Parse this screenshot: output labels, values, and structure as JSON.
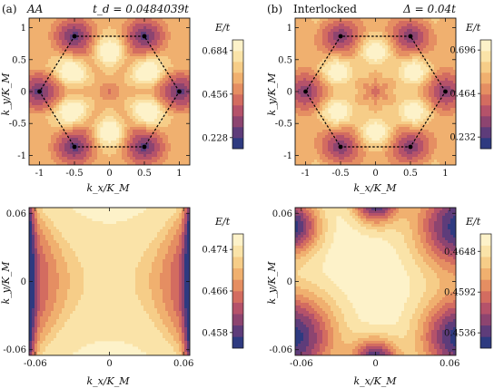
{
  "chart_data": [
    {
      "type": "heatmap",
      "panel_label": "(a)",
      "title_left": "AA",
      "title_right": "t_d = 0.0484039t",
      "xlabel": "k_x/K_M",
      "ylabel": "k_y/K_M",
      "colorbar_label": "E/t",
      "xlim": [
        -1.15,
        1.15
      ],
      "ylim": [
        -1.15,
        1.15
      ],
      "xticks": [
        "-1",
        "-0.5",
        "0",
        "0.5",
        "1"
      ],
      "xtick_values": [
        -1,
        -0.5,
        0,
        0.5,
        1
      ],
      "yticks": [
        "-1",
        "-0.5",
        "0",
        "0.5",
        "1"
      ],
      "ytick_values": [
        -1,
        -0.5,
        0,
        0.5,
        1
      ],
      "colorbar_ticks": [
        "0.228",
        "0.456",
        "0.684"
      ],
      "colorbar_tick_values": [
        0.228,
        0.456,
        0.684
      ],
      "colorbar_range": [
        0.17,
        0.74
      ],
      "hexagon_vertices": [
        [
          1,
          0
        ],
        [
          0.5,
          0.866
        ],
        [
          -0.5,
          0.866
        ],
        [
          -1,
          0
        ],
        [
          -0.5,
          -0.866
        ],
        [
          0.5,
          -0.866
        ]
      ]
    },
    {
      "type": "heatmap",
      "panel_label": "(b)",
      "title_left": "Interlocked",
      "title_right": "Δ = 0.04t",
      "xlabel": "k_x/K_M",
      "ylabel": "k_y/K_M",
      "colorbar_label": "E/t",
      "xlim": [
        -1.15,
        1.15
      ],
      "ylim": [
        -1.15,
        1.15
      ],
      "xticks": [
        "-1",
        "-0.5",
        "0",
        "0.5",
        "1"
      ],
      "xtick_values": [
        -1,
        -0.5,
        0,
        0.5,
        1
      ],
      "yticks": [
        "-1",
        "-0.5",
        "0",
        "0.5",
        "1"
      ],
      "ytick_values": [
        -1,
        -0.5,
        0,
        0.5,
        1
      ],
      "colorbar_ticks": [
        "0.232",
        "0.464",
        "0.696"
      ],
      "colorbar_tick_values": [
        0.232,
        0.464,
        0.696
      ],
      "colorbar_range": [
        0.17,
        0.75
      ],
      "hexagon_vertices": [
        [
          1,
          0
        ],
        [
          0.5,
          0.866
        ],
        [
          -0.5,
          0.866
        ],
        [
          -1,
          0
        ],
        [
          -0.5,
          -0.866
        ],
        [
          0.5,
          -0.866
        ]
      ]
    },
    {
      "type": "heatmap",
      "panel_label": "",
      "xlabel": "k_x/K_M",
      "ylabel": "k_y/K_M",
      "colorbar_label": "E/t",
      "xlim": [
        -0.065,
        0.065
      ],
      "ylim": [
        -0.065,
        0.065
      ],
      "xticks": [
        "-0.06",
        "0",
        "0.06"
      ],
      "xtick_values": [
        -0.06,
        0,
        0.06
      ],
      "yticks": [
        "-0.06",
        "0",
        "0.06"
      ],
      "ytick_values": [
        -0.06,
        0,
        0.06
      ],
      "colorbar_ticks": [
        "0.458",
        "0.466",
        "0.474"
      ],
      "colorbar_tick_values": [
        0.458,
        0.466,
        0.474
      ],
      "colorbar_range": [
        0.455,
        0.477
      ]
    },
    {
      "type": "heatmap",
      "panel_label": "",
      "xlabel": "k_x/K_M",
      "ylabel": "k_y/K_M",
      "colorbar_label": "E/t",
      "xlim": [
        -0.065,
        0.065
      ],
      "ylim": [
        -0.065,
        0.065
      ],
      "xticks": [
        "-0.06",
        "0",
        "0.06"
      ],
      "xtick_values": [
        -0.06,
        0,
        0.06
      ],
      "yticks": [
        "-0.06",
        "0",
        "0.06"
      ],
      "ytick_values": [
        -0.06,
        0,
        0.06
      ],
      "colorbar_ticks": [
        "0.4536",
        "0.4592",
        "0.4648"
      ],
      "colorbar_tick_values": [
        0.4536,
        0.4592,
        0.4648
      ],
      "colorbar_range": [
        0.4515,
        0.4672
      ]
    }
  ],
  "colors": {
    "scale": [
      "#2e3a80",
      "#5e3c7a",
      "#8d4470",
      "#b5526a",
      "#d36c60",
      "#e58e62",
      "#f0b06f",
      "#f6cd88",
      "#fae3a8",
      "#fdf2c9"
    ],
    "contour_line": "#3a2a20",
    "hexagon": "#000000",
    "axis": "#111111"
  }
}
